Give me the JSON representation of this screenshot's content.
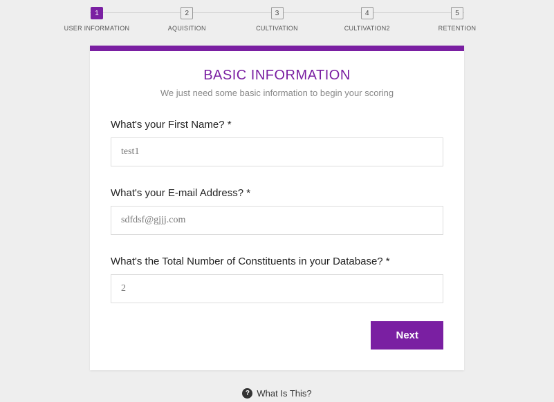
{
  "stepper": {
    "active_index": 0,
    "steps": [
      {
        "num": "1",
        "label": "USER INFORMATION"
      },
      {
        "num": "2",
        "label": "AQUISITION"
      },
      {
        "num": "3",
        "label": "CULTIVATION"
      },
      {
        "num": "4",
        "label": "CULTIVATION2"
      },
      {
        "num": "5",
        "label": "RETENTION"
      }
    ]
  },
  "card": {
    "title": "BASIC INFORMATION",
    "subtitle": "We just need some basic information to begin your scoring",
    "fields": {
      "first_name": {
        "label": "What's your First Name? *",
        "value": "test1"
      },
      "email": {
        "label": "What's your E-mail Address? *",
        "value": "sdfdsf@gjjj.com"
      },
      "constituents": {
        "label": "What's the Total Number of Constituents in your Database? *",
        "value": "2"
      }
    },
    "next_label": "Next"
  },
  "footer": {
    "help_label": "What Is This?"
  },
  "colors": {
    "accent": "#7a1fa2",
    "page_bg": "#eeeeee",
    "card_bg": "#ffffff",
    "border": "#dddddd",
    "text_muted": "#888888"
  }
}
